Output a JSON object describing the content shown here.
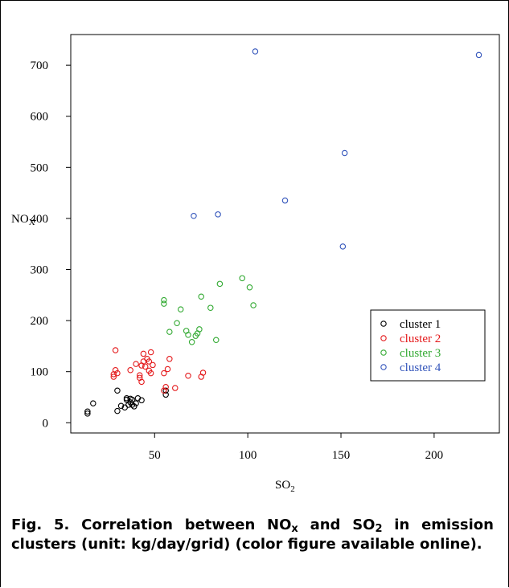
{
  "chart_data": {
    "type": "scatter",
    "xlabel": "SO",
    "xlabel_sub": "2",
    "ylabel": "NO",
    "ylabel_sub": "X",
    "xlim": [
      5,
      235
    ],
    "ylim": [
      -20,
      760
    ],
    "xticks": [
      50,
      100,
      150,
      200
    ],
    "yticks": [
      0,
      100,
      200,
      300,
      400,
      500,
      600,
      700
    ],
    "grid": false,
    "legend_position": "lower-right",
    "series": [
      {
        "name": "cluster 1",
        "color": "#000000",
        "points": [
          [
            14,
            18
          ],
          [
            14,
            22
          ],
          [
            17,
            38
          ],
          [
            30,
            23
          ],
          [
            30,
            63
          ],
          [
            32,
            33
          ],
          [
            34,
            30
          ],
          [
            35,
            45
          ],
          [
            35,
            48
          ],
          [
            36,
            35
          ],
          [
            37,
            40
          ],
          [
            37,
            47
          ],
          [
            38,
            35
          ],
          [
            38,
            45
          ],
          [
            39,
            32
          ],
          [
            40,
            38
          ],
          [
            41,
            48
          ],
          [
            43,
            44
          ],
          [
            56,
            55
          ],
          [
            56,
            63
          ]
        ]
      },
      {
        "name": "cluster 2",
        "color": "#e41a1c",
        "points": [
          [
            28,
            90
          ],
          [
            28,
            95
          ],
          [
            29,
            142
          ],
          [
            29,
            103
          ],
          [
            30,
            97
          ],
          [
            37,
            103
          ],
          [
            40,
            115
          ],
          [
            42,
            88
          ],
          [
            42,
            93
          ],
          [
            43,
            80
          ],
          [
            43,
            112
          ],
          [
            44,
            120
          ],
          [
            44,
            135
          ],
          [
            45,
            110
          ],
          [
            46,
            125
          ],
          [
            47,
            102
          ],
          [
            47,
            120
          ],
          [
            48,
            97
          ],
          [
            48,
            138
          ],
          [
            49,
            113
          ],
          [
            55,
            63
          ],
          [
            55,
            97
          ],
          [
            56,
            70
          ],
          [
            57,
            105
          ],
          [
            58,
            125
          ],
          [
            61,
            68
          ],
          [
            68,
            92
          ],
          [
            75,
            90
          ],
          [
            76,
            98
          ]
        ]
      },
      {
        "name": "cluster 3",
        "color": "#33aa33",
        "points": [
          [
            55,
            240
          ],
          [
            55,
            233
          ],
          [
            58,
            178
          ],
          [
            62,
            195
          ],
          [
            64,
            222
          ],
          [
            67,
            180
          ],
          [
            68,
            172
          ],
          [
            70,
            158
          ],
          [
            72,
            170
          ],
          [
            73,
            175
          ],
          [
            74,
            183
          ],
          [
            75,
            247
          ],
          [
            80,
            225
          ],
          [
            83,
            162
          ],
          [
            85,
            272
          ],
          [
            97,
            283
          ],
          [
            101,
            265
          ],
          [
            103,
            230
          ]
        ]
      },
      {
        "name": "cluster 4",
        "color": "#3355bb",
        "points": [
          [
            71,
            405
          ],
          [
            84,
            408
          ],
          [
            104,
            727
          ],
          [
            120,
            435
          ],
          [
            151,
            345
          ],
          [
            152,
            528
          ],
          [
            224,
            720
          ]
        ]
      }
    ]
  },
  "caption": {
    "fig": "Fig. 5.",
    "text_a": " Correlation between NO",
    "sub_a": "x",
    "text_b": " and SO",
    "sub_b": "2",
    "text_c": " in emission clusters (unit: kg/day/grid) (color figure available online)."
  }
}
